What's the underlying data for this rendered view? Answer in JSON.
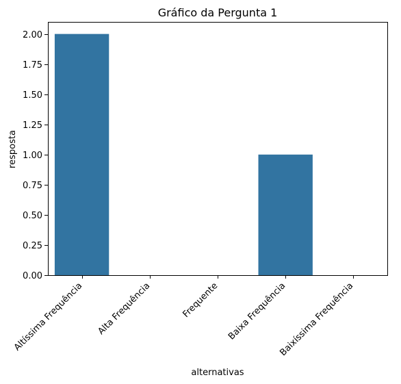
{
  "chart_data": {
    "type": "bar",
    "title": "Gráfico da Pergunta 1",
    "xlabel": "alternativas",
    "ylabel": "resposta",
    "categories": [
      "Altíssima Frequência",
      "Alta Frequência",
      "Frequente",
      "Baixa Frequência",
      "Baixíssima Frequência"
    ],
    "values": [
      2,
      0,
      0,
      1,
      0
    ],
    "ylim": [
      0,
      2.1
    ],
    "yticks": [
      0.0,
      0.25,
      0.5,
      0.75,
      1.0,
      1.25,
      1.5,
      1.75,
      2.0
    ],
    "ytick_labels": [
      "0.00",
      "0.25",
      "0.50",
      "0.75",
      "1.00",
      "1.25",
      "1.50",
      "1.75",
      "2.00"
    ],
    "bar_color": "#3274a1",
    "grid": false,
    "legend": "none"
  }
}
